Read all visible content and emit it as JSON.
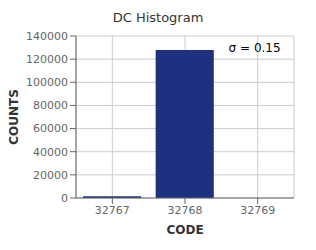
{
  "chart_data": {
    "type": "bar",
    "title": "DC Histogram",
    "xlabel": "CODE",
    "ylabel": "COUNTS",
    "x": [
      32767,
      32768,
      32769
    ],
    "values": [
      1500,
      128000,
      0
    ],
    "color": "#1e3080",
    "xlim": [
      32766.5,
      32769.5
    ],
    "xticks": [
      32767,
      32768,
      32769
    ],
    "ylim": [
      0,
      140000
    ],
    "yticks": [
      0,
      20000,
      40000,
      60000,
      80000,
      100000,
      120000,
      140000
    ],
    "grid": true,
    "annotations": [
      {
        "text": "σ = 0.15",
        "x": 32768.6,
        "y": 130000
      }
    ]
  }
}
